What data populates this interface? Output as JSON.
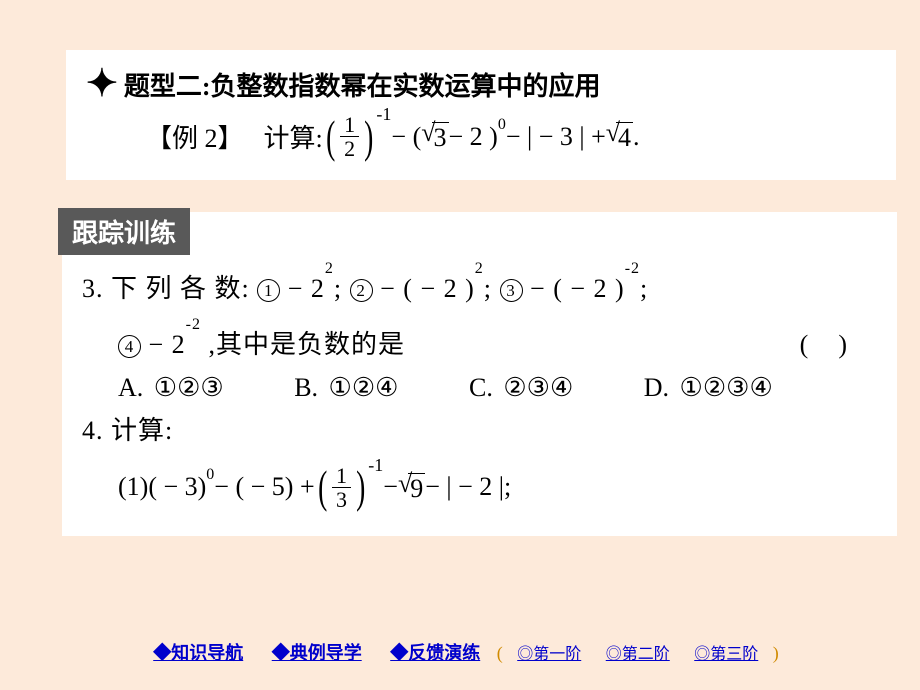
{
  "colors": {
    "page_bg": "#fdeada",
    "box_bg": "#ffffff",
    "badge_bg": "#595959",
    "badge_fg": "#ffffff",
    "link": "#0000cc",
    "stage_paren": "#d08a00",
    "text": "#000000"
  },
  "section_title": "题型二:负整数指数幂在实数运算中的应用",
  "example": {
    "label": "【例 2】",
    "prefix": "计算:",
    "frac_num": "1",
    "frac_den": "2",
    "exp1": "-1",
    "mid1": " − ( ",
    "sqrt1": "3",
    "mid2": " − 2 )",
    "exp2": "0",
    "mid3": " − | − 3 | + ",
    "sqrt2": "4",
    "end": "."
  },
  "badge": "跟踪训练",
  "q3": {
    "line1_a": "3. 下 列 各 数:",
    "c1": "1",
    "t1": " − 2",
    "e1": "2",
    "sep1": ";",
    "c2": "2",
    "t2": " − ( − 2 )",
    "e2": "2",
    "sep2": ";",
    "c3": "3",
    "t3": " − ( − 2 )",
    "e3": "-2",
    "sep3": ";",
    "line2_a": "",
    "c4": "4",
    "t4": " − 2",
    "e4": "-2",
    "line2_b": ",其中是负数的是",
    "paren_l": "(",
    "paren_r": ")",
    "optA": "A. ①②③",
    "optB": "B. ①②④",
    "optC": "C. ②③④",
    "optD": "D. ①②③④"
  },
  "q4": {
    "head": "4. 计算:",
    "p1": "(1)( − 3)",
    "e1": "0",
    "p2": " − ( − 5) + ",
    "frac_num": "1",
    "frac_den": "3",
    "e2": "-1",
    "p3": " − ",
    "sqrt": "9",
    "p4": " − | − 2 |;"
  },
  "footer": {
    "nav1": "◆知识导航",
    "nav2": "◆典例导学",
    "nav3": "◆反馈演练",
    "lp": "(",
    "s1": "◎第一阶",
    "s2": "◎第二阶",
    "s3": "◎第三阶",
    "rp": ")"
  }
}
